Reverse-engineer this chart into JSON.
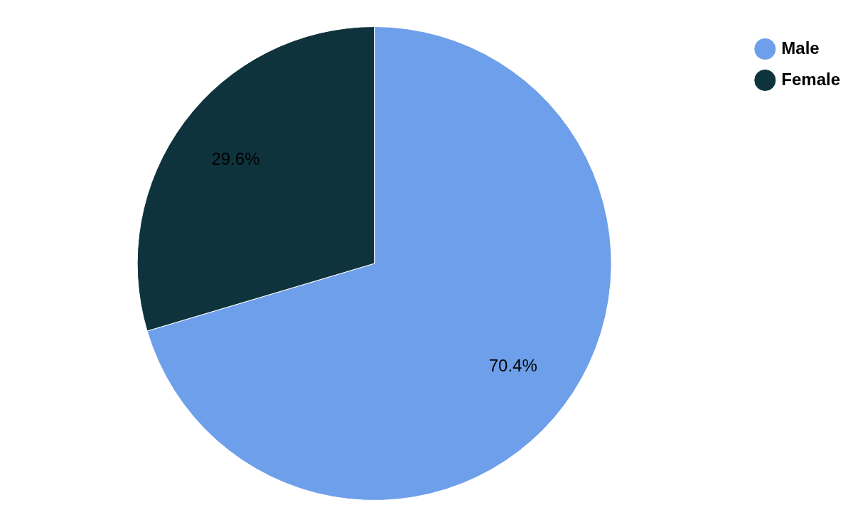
{
  "chart_data": {
    "type": "pie",
    "categories": [
      "Male",
      "Female"
    ],
    "values": [
      70.4,
      29.6
    ],
    "colors": [
      "#6e9fea",
      "#0e333c"
    ],
    "value_labels": [
      "70.4%",
      "29.6%"
    ],
    "legend": "top right"
  }
}
